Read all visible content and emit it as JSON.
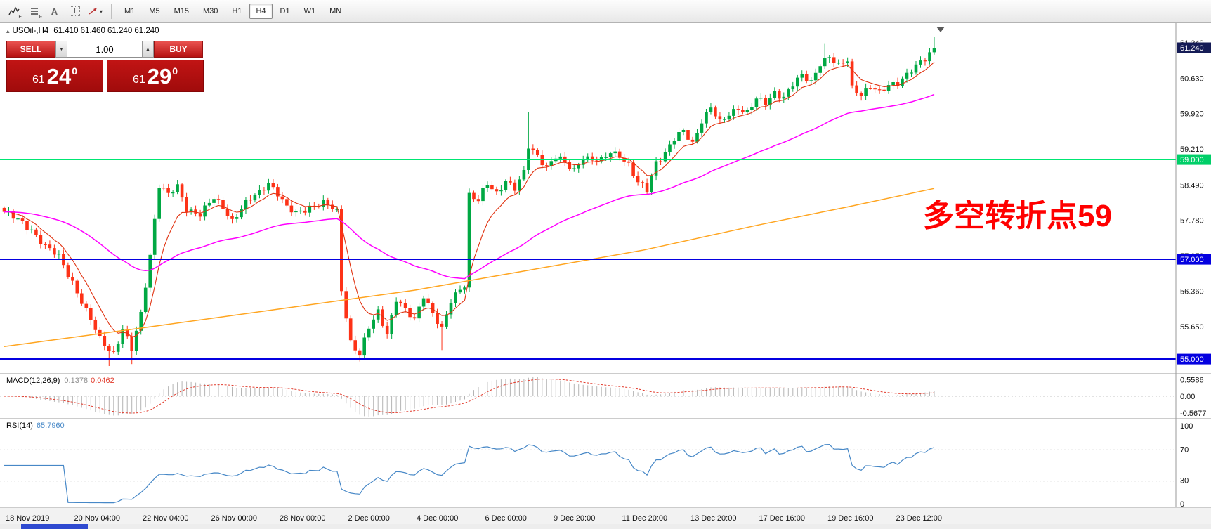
{
  "toolbar": {
    "a_label": "A",
    "t_label": "T",
    "caret": "▾",
    "icon_subs": [
      "E",
      "F"
    ],
    "timeframes": [
      {
        "label": "M1"
      },
      {
        "label": "M5"
      },
      {
        "label": "M15"
      },
      {
        "label": "M30"
      },
      {
        "label": "H1"
      },
      {
        "label": "H4",
        "active": true
      },
      {
        "label": "D1"
      },
      {
        "label": "W1"
      },
      {
        "label": "MN"
      }
    ]
  },
  "chart_header": {
    "collapse_glyph": "▴",
    "symbol_period": "USOil-,H4",
    "ohlc_text": "61.410 61.460 61.240 61.240"
  },
  "trade": {
    "sell_label": "SELL",
    "buy_label": "BUY",
    "volume": "1.00",
    "vol_down_glyph": "▼",
    "vol_up_glyph": "▲",
    "sell_price": {
      "small": "61",
      "big": "24",
      "sup": "0"
    },
    "buy_price": {
      "small": "61",
      "big": "29",
      "sup": "0"
    }
  },
  "annotation": {
    "text": "多空转折点59",
    "color": "#ff0000"
  },
  "indicator_labels": {
    "macd_name": "MACD(12,26,9)",
    "macd_main": "0.1378",
    "macd_signal": "0.0462",
    "rsi_name": "RSI(14)",
    "rsi_value": "65.7960"
  },
  "chart_data": {
    "type": "candlestick",
    "symbol": "USOil-",
    "timeframe": "H4",
    "current_bar_ohlc": {
      "open": 61.41,
      "high": 61.46,
      "low": 61.24,
      "close": 61.24
    },
    "bid": 61.24,
    "ask": 61.29,
    "price_axis_ticks": [
      55.65,
      56.36,
      57.07,
      57.78,
      58.49,
      59.21,
      59.92,
      60.63,
      61.34
    ],
    "current_price_label": {
      "value": "61.240",
      "bg": "#151c56"
    },
    "horizontal_levels": [
      {
        "price": 59.0,
        "label": "59.000",
        "color": "#00e673",
        "badge": "#00cf68"
      },
      {
        "price": 57.0,
        "label": "57.000",
        "color": "#0400e0",
        "badge": "#0400e0"
      },
      {
        "price": 55.0,
        "label": "55.000",
        "color": "#0400e0",
        "badge": "#0400e0"
      }
    ],
    "time_labels": [
      "18 Nov 2019",
      "20 Nov 04:00",
      "22 Nov 04:00",
      "26 Nov 00:00",
      "28 Nov 00:00",
      "2 Dec 00:00",
      "4 Dec 00:00",
      "6 Dec 00:00",
      "9 Dec 20:00",
      "11 Dec 20:00",
      "13 Dec 20:00",
      "17 Dec 16:00",
      "19 Dec 16:00",
      "23 Dec 12:00"
    ],
    "colors": {
      "up": "#00a843",
      "down": "#fd3217"
    },
    "price_path": [
      [
        0,
        57.95
      ],
      [
        3,
        57.78
      ],
      [
        6,
        57.6
      ],
      [
        9,
        57.25
      ],
      [
        12,
        57.05
      ],
      [
        15,
        56.55
      ],
      [
        18,
        55.95
      ],
      [
        21,
        55.4
      ],
      [
        24,
        55.12
      ],
      [
        26,
        55.6
      ],
      [
        28,
        55.18
      ],
      [
        30,
        55.9
      ],
      [
        32,
        57.1
      ],
      [
        34,
        58.5
      ],
      [
        36,
        58.28
      ],
      [
        38,
        58.45
      ],
      [
        40,
        58.02
      ],
      [
        43,
        57.9
      ],
      [
        46,
        58.22
      ],
      [
        48,
        58.05
      ],
      [
        50,
        57.78
      ],
      [
        53,
        58.12
      ],
      [
        56,
        58.35
      ],
      [
        58,
        58.55
      ],
      [
        60,
        58.32
      ],
      [
        62,
        58.02
      ],
      [
        64,
        57.92
      ],
      [
        67,
        58.06
      ],
      [
        70,
        58.12
      ],
      [
        72,
        58.02
      ],
      [
        73,
        57.95
      ],
      [
        74,
        56.4
      ],
      [
        76,
        55.35
      ],
      [
        78,
        55.08
      ],
      [
        80,
        55.62
      ],
      [
        82,
        55.95
      ],
      [
        84,
        55.52
      ],
      [
        86,
        56.2
      ],
      [
        88,
        55.96
      ],
      [
        90,
        55.78
      ],
      [
        92,
        56.3
      ],
      [
        94,
        55.92
      ],
      [
        96,
        55.58
      ],
      [
        98,
        56.15
      ],
      [
        100,
        56.42
      ],
      [
        101,
        56.5
      ],
      [
        102,
        58.3
      ],
      [
        104,
        58.18
      ],
      [
        106,
        58.5
      ],
      [
        108,
        58.32
      ],
      [
        110,
        58.6
      ],
      [
        112,
        58.42
      ],
      [
        114,
        58.72
      ],
      [
        115,
        59.25
      ],
      [
        117,
        59.08
      ],
      [
        119,
        58.86
      ],
      [
        121,
        59.06
      ],
      [
        123,
        58.92
      ],
      [
        125,
        58.78
      ],
      [
        127,
        59.06
      ],
      [
        129,
        59.0
      ],
      [
        131,
        58.96
      ],
      [
        133,
        59.14
      ],
      [
        135,
        59.1
      ],
      [
        137,
        58.9
      ],
      [
        139,
        58.52
      ],
      [
        141,
        58.38
      ],
      [
        143,
        58.95
      ],
      [
        145,
        59.15
      ],
      [
        147,
        59.42
      ],
      [
        149,
        59.55
      ],
      [
        151,
        59.32
      ],
      [
        153,
        59.8
      ],
      [
        155,
        60.05
      ],
      [
        157,
        59.72
      ],
      [
        159,
        59.9
      ],
      [
        161,
        60.05
      ],
      [
        163,
        59.95
      ],
      [
        165,
        60.2
      ],
      [
        167,
        60.12
      ],
      [
        169,
        60.35
      ],
      [
        171,
        60.26
      ],
      [
        173,
        60.5
      ],
      [
        175,
        60.66
      ],
      [
        177,
        60.56
      ],
      [
        179,
        60.95
      ],
      [
        181,
        61.05
      ],
      [
        183,
        60.86
      ],
      [
        185,
        61.0
      ],
      [
        186,
        60.45
      ],
      [
        188,
        60.32
      ],
      [
        190,
        60.46
      ],
      [
        192,
        60.32
      ],
      [
        194,
        60.5
      ],
      [
        196,
        60.56
      ],
      [
        198,
        60.7
      ],
      [
        200,
        60.85
      ],
      [
        202,
        61.02
      ],
      [
        204,
        61.24
      ]
    ],
    "wick_spikes": [
      [
        23,
        54.86
      ],
      [
        28,
        54.9
      ],
      [
        78,
        54.95
      ],
      [
        96,
        55.18
      ],
      [
        115,
        59.95
      ],
      [
        180,
        61.33
      ],
      [
        204,
        61.46
      ]
    ],
    "moving_averages": {
      "fast": {
        "period": 8,
        "color": "#e03210"
      },
      "slow": {
        "period": 55,
        "color": "#ff00ff"
      },
      "trend": {
        "color": "#ffa520",
        "points": [
          [
            0,
            55.25
          ],
          [
            30,
            55.62
          ],
          [
            60,
            56.0
          ],
          [
            90,
            56.38
          ],
          [
            115,
            56.78
          ],
          [
            140,
            57.18
          ],
          [
            165,
            57.68
          ],
          [
            185,
            58.05
          ],
          [
            204,
            58.42
          ]
        ]
      }
    },
    "indicators": {
      "macd": {
        "params": [
          12,
          26,
          9
        ],
        "axis_labels": [
          "0.5586",
          "0.00",
          "-0.5677"
        ],
        "histogram_color": "#b4b4b4",
        "signal_color": "#e23d2e"
      },
      "rsi": {
        "period": 14,
        "axis_labels": [
          "100",
          "70",
          "30",
          "0"
        ],
        "levels": [
          70,
          30
        ],
        "line_color": "#4788c7"
      }
    },
    "note": "price_path approximates the candle series; candles are expanded deterministically at render time"
  }
}
